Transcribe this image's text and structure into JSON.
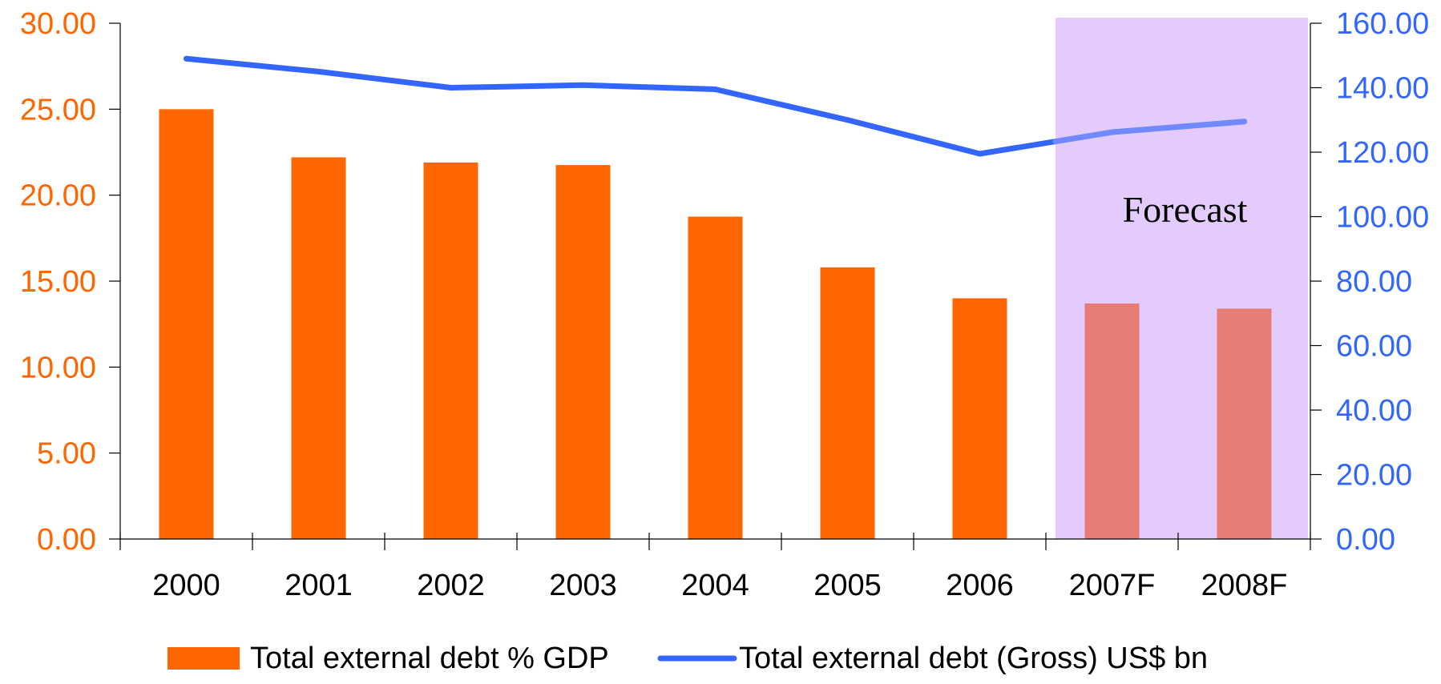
{
  "chart_data": {
    "type": "bar",
    "categories": [
      "2000",
      "2001",
      "2002",
      "2003",
      "2004",
      "2005",
      "2006",
      "2007F",
      "2008F"
    ],
    "series": [
      {
        "name": "Total external debt % GDP",
        "chart_type": "bar",
        "axis": "left",
        "values": [
          25.0,
          22.2,
          21.9,
          21.75,
          18.75,
          15.8,
          14.0,
          13.7,
          13.4
        ],
        "color": "#FF6600",
        "forecast_color": "#E77C75"
      },
      {
        "name": "Total external debt (Gross) US$ bn",
        "chart_type": "line",
        "axis": "right",
        "values": [
          149.0,
          145.0,
          140.0,
          140.8,
          139.5,
          130.0,
          119.5,
          126.2,
          129.5
        ],
        "color": "#3366FF"
      }
    ],
    "y_left": {
      "range": [
        0,
        30
      ],
      "ticks": [
        "0.00",
        "5.00",
        "10.00",
        "15.00",
        "20.00",
        "25.00",
        "30.00"
      ],
      "color": "#FF6600"
    },
    "y_right": {
      "range": [
        0,
        160
      ],
      "ticks": [
        "0.00",
        "20.00",
        "40.00",
        "60.00",
        "80.00",
        "100.00",
        "120.00",
        "140.00",
        "160.00"
      ],
      "color": "#3366FF"
    },
    "forecast": {
      "label": "Forecast",
      "categories": [
        "2007F",
        "2008F"
      ],
      "color": "#E3CCFD"
    },
    "grid": false,
    "legend": {
      "position": "bottom",
      "items": [
        "Total external debt % GDP",
        "Total external debt (Gross) US$ bn"
      ]
    }
  }
}
